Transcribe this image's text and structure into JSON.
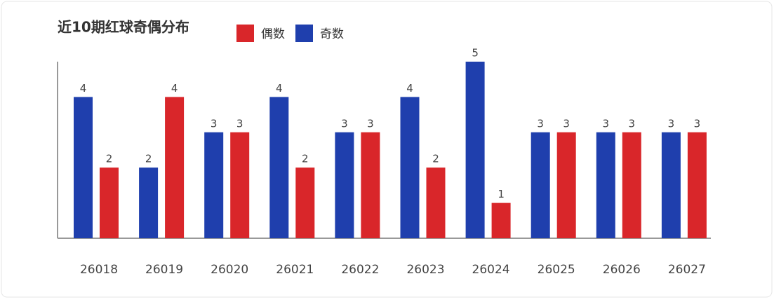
{
  "chart_data": {
    "type": "bar",
    "title": "近10期红球奇偶分布",
    "categories": [
      "26018",
      "26019",
      "26020",
      "26021",
      "26022",
      "26023",
      "26024",
      "26025",
      "26026",
      "26027"
    ],
    "series": [
      {
        "name": "偶数",
        "color": "#d9262a",
        "values": [
          2,
          4,
          3,
          2,
          3,
          2,
          1,
          3,
          3,
          3
        ]
      },
      {
        "name": "奇数",
        "color": "#1f3fad",
        "values": [
          4,
          2,
          3,
          4,
          3,
          4,
          5,
          3,
          3,
          3
        ]
      }
    ],
    "ylim": [
      0,
      5
    ],
    "legend": "top"
  }
}
